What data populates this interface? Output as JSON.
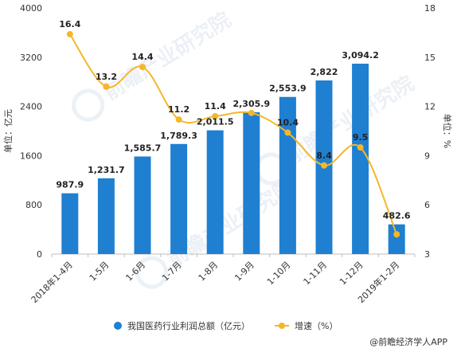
{
  "chart_data": {
    "type": "bar",
    "categories": [
      "2018年1-4月",
      "1-5月",
      "1-6月",
      "1-7月",
      "1-8月",
      "1-9月",
      "1-10月",
      "1-11月",
      "1-12月",
      "2019年1-2月"
    ],
    "series": [
      {
        "name": "我国医药行业利润总额（亿元）",
        "type": "bar",
        "axis": "left",
        "color": "#1f7fd1",
        "values": [
          987.9,
          1231.7,
          1585.7,
          1789.3,
          2011.5,
          2305.9,
          2553.9,
          2822,
          3094.2,
          482.6
        ],
        "labels": [
          "987.9",
          "1,231.7",
          "1,585.7",
          "1,789.3",
          "2,011.5",
          "2,305.9",
          "2,553.9",
          "2,822",
          "3,094.2",
          "482.6"
        ]
      },
      {
        "name": "增速（%）",
        "type": "line",
        "axis": "right",
        "color": "#f4b72a",
        "values": [
          16.4,
          13.2,
          14.4,
          11.2,
          11.4,
          11.6,
          10.4,
          8.4,
          9.5,
          4.2
        ],
        "labels": [
          "16.4",
          "13.2",
          "14.4",
          "11.2",
          "11.4",
          "",
          "10.4",
          "8.4",
          "9.5",
          ""
        ]
      }
    ],
    "left_axis": {
      "label": "单位：亿元",
      "min": 0,
      "max": 4000,
      "ticks": [
        0,
        800,
        1600,
        2400,
        3200,
        4000
      ]
    },
    "right_axis": {
      "label": "单位：%",
      "min": 3,
      "max": 18,
      "ticks": [
        3,
        6,
        9,
        12,
        15,
        18
      ]
    },
    "legend_position": "bottom",
    "grid": false
  },
  "source": "@前瞻经济学人APP",
  "watermark": "前瞻产业研究院"
}
